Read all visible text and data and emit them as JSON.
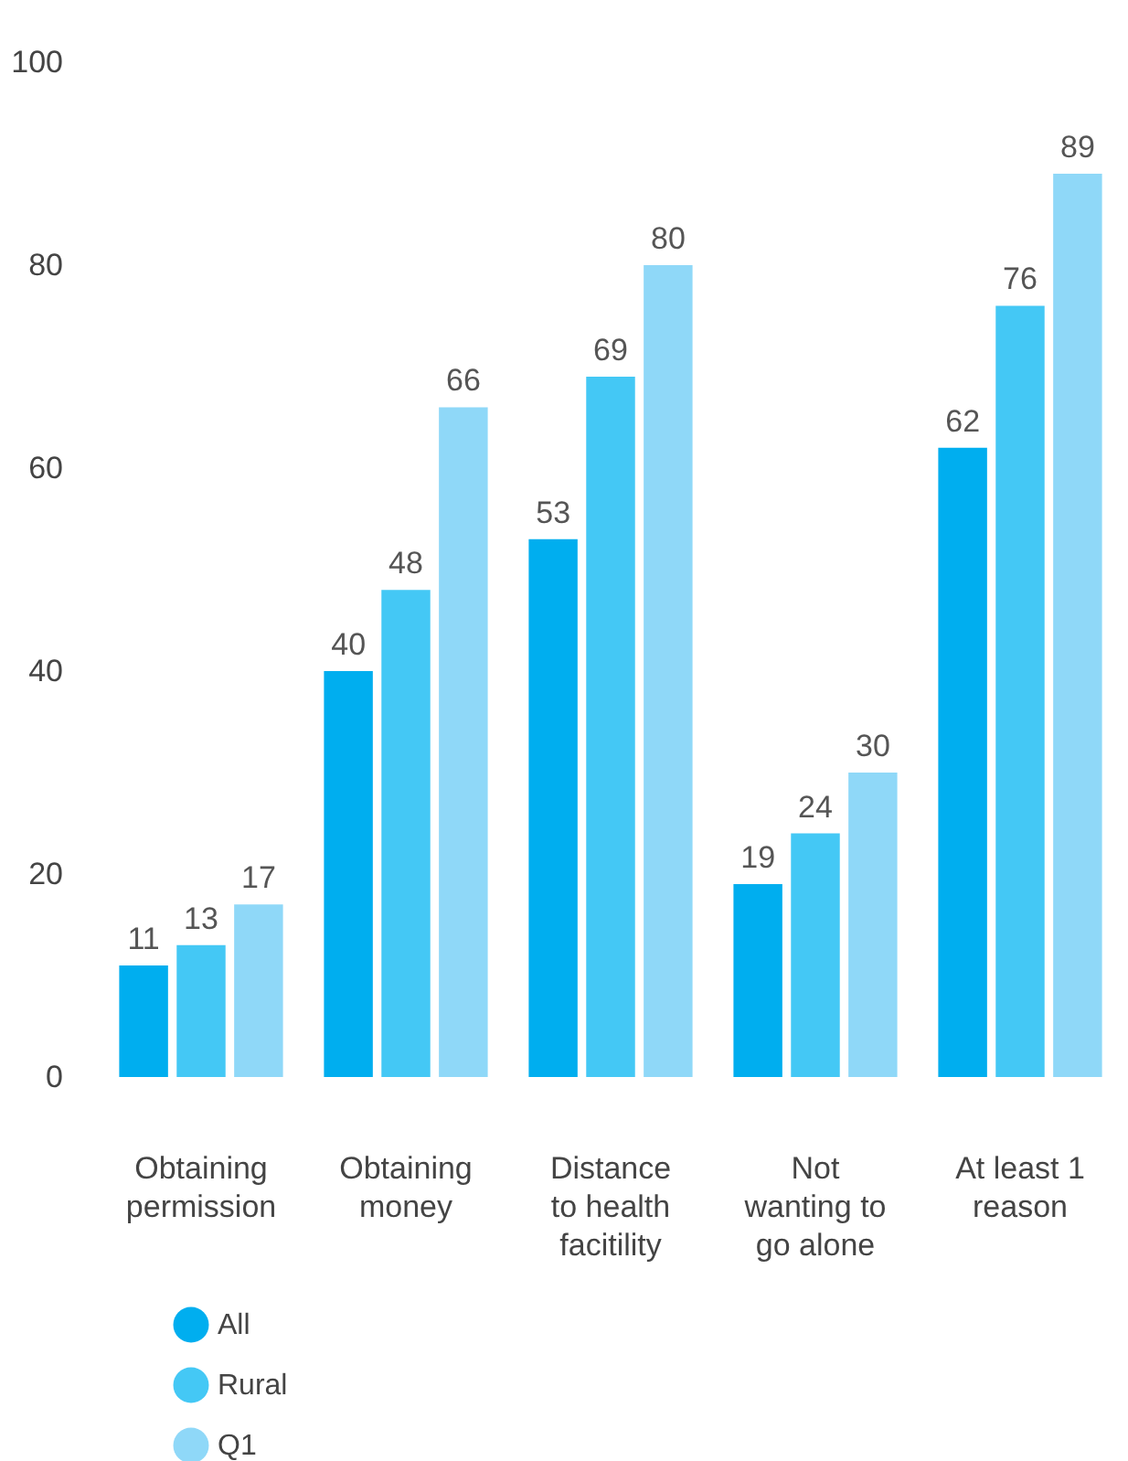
{
  "chart_data": {
    "type": "bar",
    "categories": [
      "Obtaining permission",
      "Obtaining money",
      "Distance to health facitility",
      "Not wanting to go alone",
      "At least 1 reason"
    ],
    "series": [
      {
        "name": "All",
        "color": "#00aeef",
        "values": [
          11,
          40,
          53,
          19,
          62
        ]
      },
      {
        "name": "Rural",
        "color": "#44c8f5",
        "values": [
          13,
          48,
          69,
          24,
          76
        ]
      },
      {
        "name": "Q1",
        "color": "#8fd8f8",
        "values": [
          17,
          66,
          80,
          30,
          89
        ]
      }
    ],
    "ylim": [
      0,
      100
    ],
    "yticks": [
      0,
      20,
      40,
      60,
      80,
      100
    ],
    "grid": false,
    "legend": "bottom left",
    "data_labels": true
  }
}
